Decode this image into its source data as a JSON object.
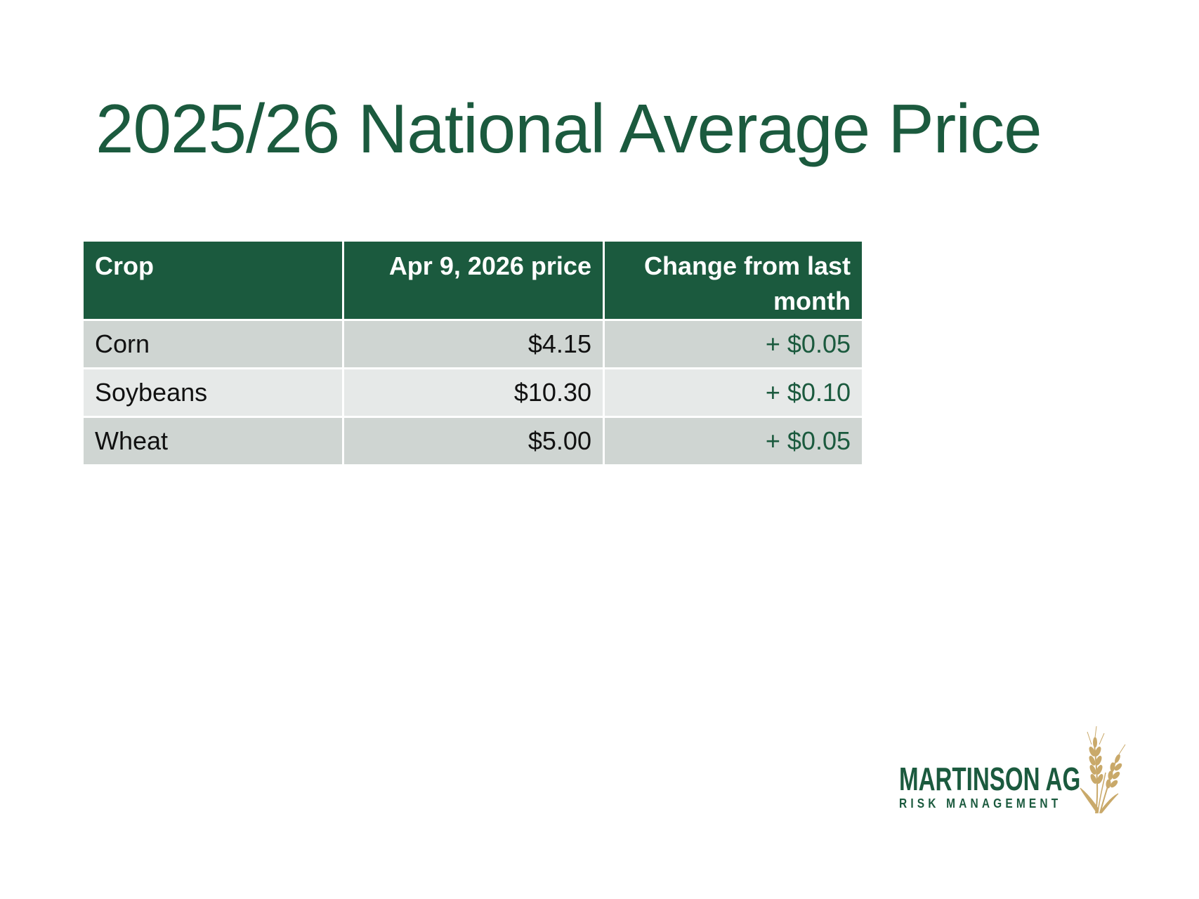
{
  "slide": {
    "title": "2025/26 National Average Price"
  },
  "table": {
    "headers": {
      "crop": "Crop",
      "price": "Apr 9, 2026 price",
      "change": "Change from last month"
    },
    "rows": [
      {
        "crop": "Corn",
        "price": "$4.15",
        "change": "+ $0.05"
      },
      {
        "crop": "Soybeans",
        "price": "$10.30",
        "change": "+ $0.10"
      },
      {
        "crop": "Wheat",
        "price": "$5.00",
        "change": "+ $0.05"
      }
    ]
  },
  "logo": {
    "name": "MARTINSON AG",
    "tagline": "RISK MANAGEMENT",
    "icon": "wheat-icon",
    "colors": {
      "primary": "#1b5a3e",
      "accent": "#c9a96a"
    }
  }
}
